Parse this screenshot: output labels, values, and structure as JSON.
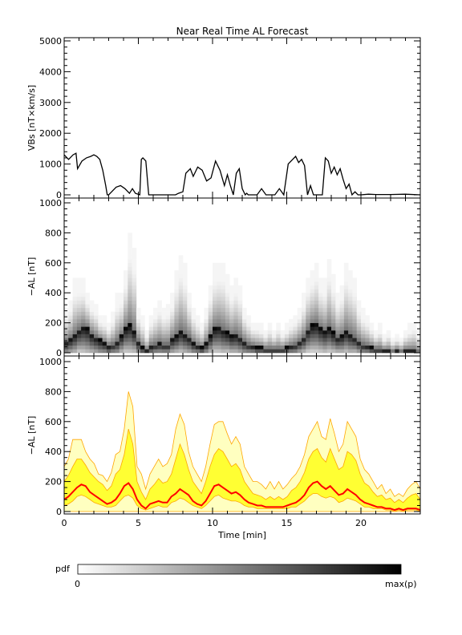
{
  "figure": {
    "title": "Near Real Time AL Forecast",
    "xlabel": "Time [min]",
    "xticks": [
      "0",
      "5",
      "10",
      "15",
      "20"
    ],
    "colorbar": {
      "label": "pdf",
      "min_label": "0",
      "max_label": "max(p)"
    }
  },
  "colors": {
    "median_line": "#ff0000",
    "band_inner": "#ffff33",
    "band_outer": "#ffffc0",
    "band_edge": "#ffa500",
    "vbs_line": "#000000"
  },
  "chart_data": [
    {
      "id": "vbs",
      "type": "line",
      "ylabel": "VBs [nT×km/s]",
      "ylim": [
        0,
        5000
      ],
      "xlim": [
        0,
        24
      ],
      "yticks": [
        "0",
        "1000",
        "2000",
        "3000",
        "4000",
        "5000"
      ],
      "x": [
        0,
        0.3,
        0.6,
        0.8,
        0.9,
        1.2,
        1.5,
        1.8,
        2.0,
        2.2,
        2.4,
        2.6,
        2.8,
        2.9,
        3.0,
        3.2,
        3.5,
        3.8,
        4.1,
        4.4,
        4.6,
        4.8,
        5.1,
        5.2,
        5.3,
        5.5,
        5.7,
        5.8,
        6.0,
        6.5,
        7.0,
        7.3,
        7.5,
        7.7,
        8.0,
        8.2,
        8.5,
        8.7,
        9.0,
        9.3,
        9.6,
        9.9,
        10.2,
        10.5,
        10.8,
        11.0,
        11.2,
        11.4,
        11.6,
        11.8,
        12.0,
        12.2,
        12.3,
        12.4,
        12.6,
        12.8,
        13.0,
        13.3,
        13.6,
        13.8,
        14.0,
        14.2,
        14.5,
        14.8,
        15.1,
        15.4,
        15.6,
        15.8,
        16.0,
        16.2,
        16.4,
        16.6,
        16.8,
        17.0,
        17.2,
        17.4,
        17.6,
        17.8,
        18.0,
        18.2,
        18.4,
        18.6,
        18.8,
        19.0,
        19.2,
        19.4,
        19.6,
        19.8,
        20.0,
        20.5,
        21.0,
        22.0,
        23.0,
        24.0
      ],
      "y": [
        1300,
        1150,
        1300,
        1350,
        850,
        1100,
        1200,
        1250,
        1300,
        1250,
        1150,
        800,
        300,
        0,
        0,
        100,
        250,
        300,
        200,
        50,
        200,
        50,
        0,
        1150,
        1200,
        1100,
        0,
        0,
        0,
        0,
        0,
        0,
        0,
        50,
        100,
        700,
        850,
        600,
        900,
        800,
        450,
        550,
        1100,
        800,
        300,
        650,
        300,
        0,
        700,
        850,
        200,
        0,
        50,
        0,
        0,
        0,
        0,
        200,
        0,
        0,
        0,
        0,
        200,
        0,
        1000,
        1150,
        1250,
        1050,
        1150,
        950,
        0,
        300,
        0,
        0,
        0,
        0,
        1200,
        1100,
        700,
        900,
        650,
        850,
        500,
        200,
        350,
        0,
        100,
        0,
        0,
        20,
        10,
        10,
        20,
        0
      ]
    },
    {
      "id": "pdf",
      "type": "heatmap",
      "ylabel": "−AL [nT]",
      "ylim": [
        0,
        1000
      ],
      "xlim": [
        0,
        24
      ],
      "yticks": [
        "0",
        "200",
        "400",
        "600",
        "800",
        "1000"
      ],
      "median": [
        80,
        100,
        130,
        160,
        180,
        170,
        130,
        110,
        90,
        70,
        50,
        60,
        80,
        120,
        170,
        190,
        150,
        80,
        40,
        20,
        50,
        60,
        70,
        60,
        60,
        100,
        120,
        150,
        130,
        110,
        70,
        50,
        40,
        70,
        120,
        170,
        180,
        160,
        140,
        120,
        130,
        110,
        80,
        60,
        50,
        40,
        40,
        30,
        30,
        30,
        30,
        30,
        40,
        50,
        60,
        80,
        110,
        160,
        190,
        200,
        170,
        150,
        170,
        140,
        110,
        120,
        150,
        130,
        110,
        80,
        60,
        50,
        40,
        30,
        30,
        20,
        20,
        10,
        20,
        10,
        20,
        20,
        20,
        10
      ],
      "lower": [
        20,
        30,
        40,
        60,
        60,
        50,
        40,
        30,
        20,
        20,
        10,
        20,
        20,
        40,
        60,
        60,
        50,
        20,
        10,
        10,
        10,
        20,
        20,
        20,
        20,
        30,
        40,
        50,
        40,
        30,
        20,
        20,
        10,
        20,
        40,
        60,
        60,
        50,
        50,
        40,
        40,
        30,
        20,
        20,
        20,
        10,
        10,
        10,
        10,
        10,
        10,
        10,
        10,
        20,
        20,
        30,
        40,
        60,
        70,
        70,
        60,
        50,
        60,
        50,
        40,
        40,
        50,
        40,
        40,
        30,
        20,
        20,
        10,
        10,
        10,
        10,
        10,
        0,
        10,
        0,
        10,
        10,
        10,
        0
      ],
      "upper": [
        300,
        350,
        480,
        480,
        480,
        400,
        350,
        320,
        250,
        240,
        200,
        260,
        380,
        400,
        550,
        800,
        700,
        300,
        250,
        150,
        250,
        300,
        350,
        300,
        320,
        380,
        550,
        650,
        580,
        400,
        300,
        250,
        200,
        300,
        450,
        580,
        600,
        600,
        520,
        450,
        500,
        450,
        300,
        250,
        200,
        200,
        180,
        150,
        200,
        150,
        200,
        150,
        180,
        220,
        250,
        300,
        380,
        500,
        550,
        600,
        500,
        480,
        620,
        520,
        400,
        450,
        600,
        550,
        500,
        350,
        280,
        250,
        200,
        150,
        180,
        120,
        150,
        100,
        120,
        100,
        150,
        180,
        200,
        150
      ]
    },
    {
      "id": "bands",
      "type": "area",
      "ylabel": "−AL [nT]",
      "ylim": [
        0,
        1000
      ],
      "xlim": [
        0,
        24
      ],
      "yticks": [
        "0",
        "200",
        "400",
        "600",
        "800",
        "1000"
      ],
      "median": [
        80,
        100,
        130,
        160,
        180,
        170,
        130,
        110,
        90,
        70,
        50,
        60,
        80,
        120,
        170,
        190,
        150,
        80,
        40,
        20,
        50,
        60,
        70,
        60,
        60,
        100,
        120,
        150,
        130,
        110,
        70,
        50,
        40,
        70,
        120,
        170,
        180,
        160,
        140,
        120,
        130,
        110,
        80,
        60,
        50,
        40,
        40,
        30,
        30,
        30,
        30,
        30,
        40,
        50,
        60,
        80,
        110,
        160,
        190,
        200,
        170,
        150,
        170,
        140,
        110,
        120,
        150,
        130,
        110,
        80,
        60,
        50,
        40,
        30,
        30,
        20,
        20,
        10,
        20,
        10,
        20,
        20,
        20,
        10
      ],
      "inner_upper": [
        200,
        240,
        300,
        350,
        350,
        310,
        260,
        230,
        200,
        180,
        140,
        170,
        250,
        280,
        380,
        550,
        450,
        200,
        130,
        80,
        150,
        180,
        220,
        190,
        200,
        250,
        350,
        450,
        380,
        280,
        200,
        160,
        120,
        200,
        300,
        380,
        420,
        400,
        350,
        300,
        320,
        280,
        200,
        160,
        120,
        110,
        100,
        80,
        100,
        80,
        100,
        80,
        100,
        140,
        160,
        200,
        260,
        350,
        400,
        420,
        360,
        330,
        420,
        350,
        280,
        300,
        400,
        380,
        340,
        250,
        190,
        170,
        130,
        100,
        110,
        80,
        90,
        60,
        80,
        60,
        90,
        110,
        120,
        80
      ],
      "inner_lower": [
        40,
        50,
        70,
        100,
        110,
        100,
        80,
        60,
        50,
        40,
        30,
        30,
        40,
        70,
        100,
        110,
        90,
        40,
        20,
        10,
        20,
        30,
        40,
        30,
        30,
        60,
        70,
        90,
        80,
        60,
        40,
        30,
        20,
        40,
        70,
        100,
        110,
        90,
        80,
        70,
        70,
        60,
        40,
        30,
        30,
        20,
        20,
        20,
        20,
        20,
        20,
        20,
        20,
        30,
        30,
        50,
        70,
        100,
        120,
        120,
        100,
        90,
        100,
        90,
        60,
        70,
        90,
        80,
        70,
        50,
        30,
        30,
        20,
        20,
        20,
        10,
        10,
        0,
        10,
        0,
        10,
        10,
        10,
        0
      ],
      "outer_upper": [
        300,
        350,
        480,
        480,
        480,
        400,
        350,
        320,
        250,
        240,
        200,
        260,
        380,
        400,
        550,
        800,
        700,
        300,
        250,
        150,
        250,
        300,
        350,
        300,
        320,
        380,
        550,
        650,
        580,
        400,
        300,
        250,
        200,
        300,
        450,
        580,
        600,
        600,
        520,
        450,
        500,
        450,
        300,
        250,
        200,
        200,
        180,
        150,
        200,
        150,
        200,
        150,
        180,
        220,
        250,
        300,
        380,
        500,
        550,
        600,
        500,
        480,
        620,
        520,
        400,
        450,
        600,
        550,
        500,
        350,
        280,
        250,
        200,
        150,
        180,
        120,
        150,
        100,
        120,
        100,
        150,
        180,
        200,
        150
      ]
    }
  ]
}
